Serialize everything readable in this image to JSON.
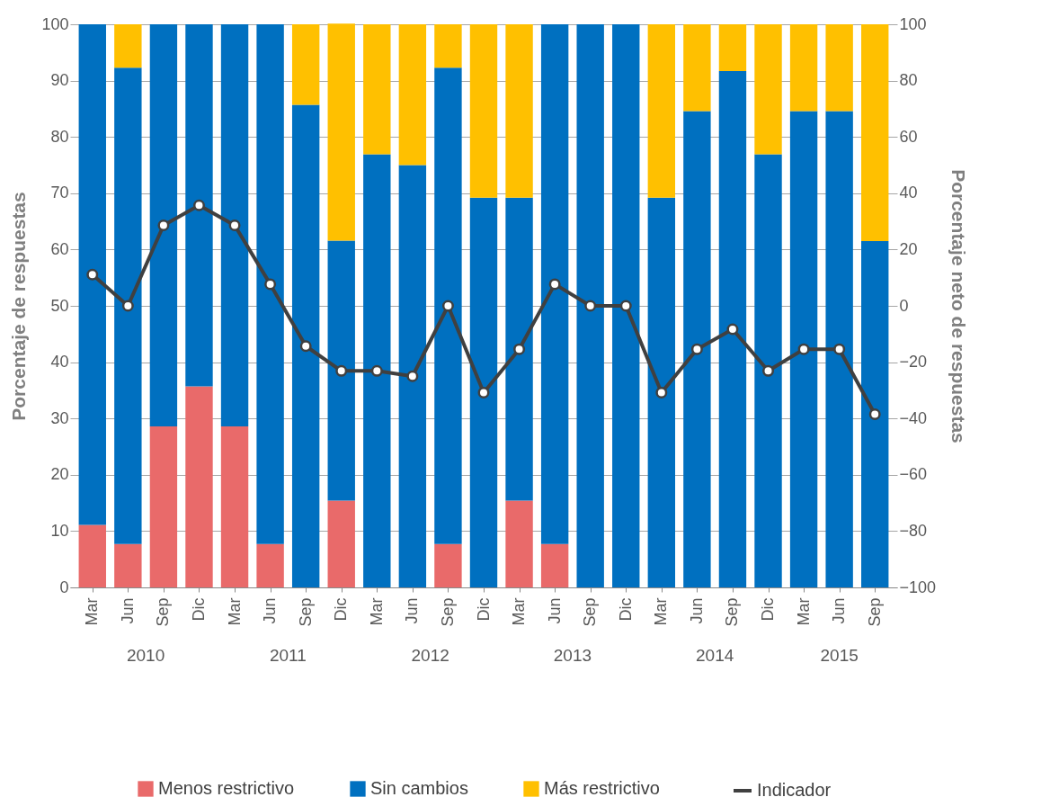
{
  "chart_data": {
    "type": "bar",
    "stacked": true,
    "ylabel": "Porcentaje de respuestas",
    "y2label": "Porcentaje neto de respuestas",
    "categories": [
      "Mar",
      "Jun",
      "Sep",
      "Dic",
      "Mar",
      "Jun",
      "Sep",
      "Dic",
      "Mar",
      "Jun",
      "Sep",
      "Dic",
      "Mar",
      "Jun",
      "Sep",
      "Dic",
      "Mar",
      "Jun",
      "Sep",
      "Dic",
      "Mar",
      "Jun",
      "Sep"
    ],
    "series": [
      {
        "name": "Menos restrictivo",
        "color": "#e96a6a",
        "values": [
          11.1,
          7.7,
          28.6,
          35.7,
          28.6,
          7.7,
          0,
          15.4,
          0,
          0,
          7.7,
          0,
          15.4,
          7.7,
          0,
          0,
          0,
          0,
          0,
          0,
          0,
          0,
          0
        ]
      },
      {
        "name": "Sin cambios",
        "color": "#0070c0",
        "values": [
          88.9,
          84.6,
          71.4,
          64.3,
          71.4,
          92.3,
          85.7,
          46.2,
          76.9,
          75,
          84.6,
          69.2,
          53.8,
          92.3,
          100,
          100,
          69.2,
          84.6,
          91.7,
          76.9,
          84.6,
          84.6,
          61.5
        ]
      },
      {
        "name": "Más restrictivo",
        "color": "#ffc000",
        "values": [
          0,
          7.7,
          0,
          0,
          0,
          0,
          14.3,
          38.5,
          23.1,
          25,
          7.7,
          30.8,
          30.8,
          0,
          0,
          0,
          30.8,
          15.4,
          8.3,
          23.1,
          15.4,
          15.4,
          38.5
        ]
      },
      {
        "name": "Indicador",
        "type": "line",
        "axis": "y2",
        "marker": "circle",
        "color": "#404040",
        "values": [
          11.1,
          0,
          28.6,
          35.7,
          28.6,
          7.7,
          -14.3,
          -23.1,
          -23.1,
          -25,
          0,
          -30.8,
          -15.4,
          7.7,
          0,
          0,
          -30.8,
          -15.4,
          -8.3,
          -23.1,
          -15.4,
          -15.4,
          -38.5
        ]
      }
    ],
    "ylim": [
      0,
      100
    ],
    "yticks": [
      0,
      10,
      20,
      30,
      40,
      50,
      60,
      70,
      80,
      90,
      100
    ],
    "y2lim": [
      -100,
      100
    ],
    "y2ticks": [
      -100,
      -80,
      -60,
      -40,
      -20,
      0,
      20,
      40,
      60,
      80,
      100
    ],
    "grid": "y",
    "legend": "bottom",
    "annotations": [
      "2010",
      "2011",
      "2012",
      "2013",
      "2014",
      "2015"
    ]
  }
}
